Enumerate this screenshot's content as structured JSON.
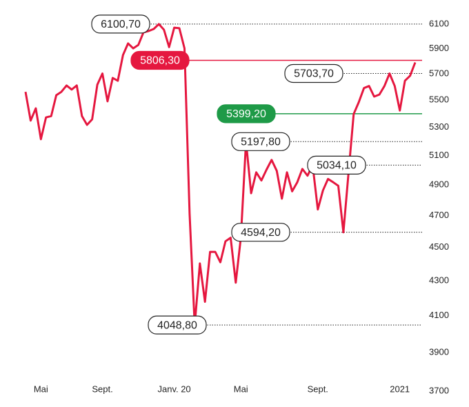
{
  "chart_data": {
    "type": "line",
    "categories": [
      null,
      null,
      null,
      "Mai",
      null,
      null,
      null,
      null,
      null,
      null,
      null,
      null,
      null,
      null,
      null,
      "Sept.",
      null,
      null,
      null,
      null,
      null,
      null,
      null,
      null,
      null,
      null,
      null,
      null,
      null,
      "Janv. 20",
      null,
      null,
      null,
      null,
      null,
      null,
      null,
      null,
      null,
      null,
      null,
      null,
      "Mai",
      null,
      null,
      null,
      null,
      null,
      null,
      null,
      null,
      null,
      null,
      null,
      null,
      null,
      null,
      "Sept.",
      null,
      null,
      null,
      null,
      null,
      null,
      null,
      null,
      null,
      null,
      null,
      null,
      null,
      null,
      null,
      "2021",
      null,
      null,
      null
    ],
    "series": [
      {
        "color": "#e5173f",
        "values": [
          5563,
          5349,
          5439,
          5215,
          5372,
          5382,
          5537,
          5563,
          5611,
          5580,
          5611,
          5382,
          5318,
          5358,
          5617,
          5703,
          5491,
          5669,
          5647,
          5848,
          5942,
          5902,
          5930,
          6032,
          6043,
          6060,
          6100.7,
          6054,
          5912,
          6071,
          6066,
          5902,
          4711,
          4048.8,
          4403,
          4179,
          4473,
          4473,
          4410,
          4538,
          4560,
          4289,
          4560,
          5197.8,
          4845,
          4985,
          4930,
          5003,
          5070,
          4995,
          4809,
          4985,
          4858,
          4918,
          5008,
          4962,
          5034.1,
          4739,
          4863,
          4940,
          4918,
          4894,
          4594.2,
          4985,
          5397,
          5485,
          5591,
          5607,
          5527,
          5542,
          5607,
          5703.7,
          5607,
          5423,
          5647,
          5686,
          5790
        ]
      }
    ],
    "ylim": [
      3700,
      6100
    ],
    "yticks": [
      3700,
      3900,
      4100,
      4300,
      4500,
      4700,
      4900,
      5100,
      5300,
      5500,
      5700,
      5900,
      6100
    ],
    "log": true,
    "annotations": [
      {
        "label": "6100,70",
        "value": 6100.7,
        "style": "dotted",
        "color": "#222222"
      },
      {
        "label": "5806,30",
        "value": 5806.3,
        "style": "filled",
        "color": "#e5173f"
      },
      {
        "label": "5703,70",
        "value": 5703.7,
        "style": "dotted",
        "color": "#222222"
      },
      {
        "label": "5399,20",
        "value": 5399.2,
        "style": "filled",
        "color": "#1e9a47"
      },
      {
        "label": "5197,80",
        "value": 5197.8,
        "style": "dotted",
        "color": "#222222"
      },
      {
        "label": "5034,10",
        "value": 5034.1,
        "style": "dotted",
        "color": "#222222"
      },
      {
        "label": "4594,20",
        "value": 4594.2,
        "style": "dotted",
        "color": "#222222"
      },
      {
        "label": "4048,80",
        "value": 4048.8,
        "style": "dotted",
        "color": "#222222"
      }
    ]
  }
}
